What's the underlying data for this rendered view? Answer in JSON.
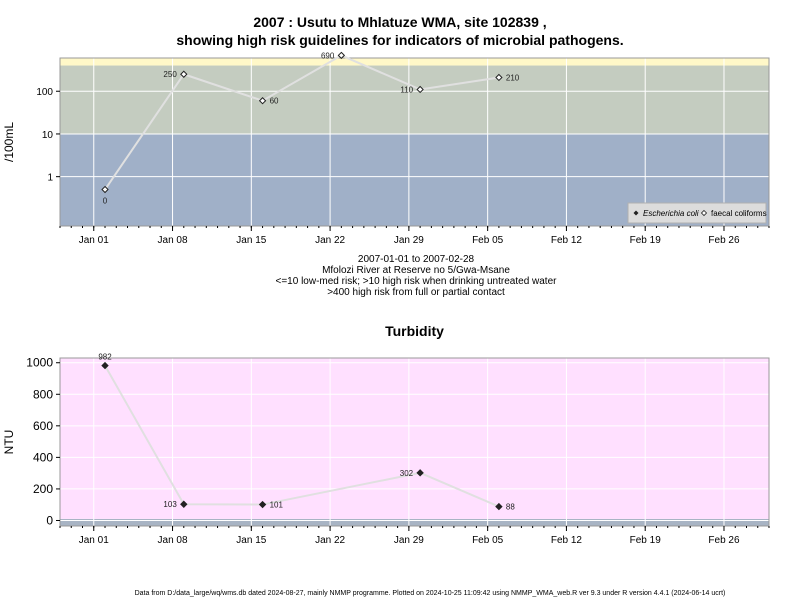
{
  "page": {
    "title_line1": "2007 : Usutu to Mhlatuze WMA, site 102839 ,",
    "title_line2": "showing high risk guidelines for indicators of microbial pathogens.",
    "info_lines": [
      "2007-01-01 to 2007-02-28",
      "Mfolozi River at Reserve no 5/Gwa-Msane",
      "<=10 low-med risk; >10 high risk when drinking untreated water",
      ">400 high risk from full or partial contact"
    ],
    "footer": "Data from D:/data_large/wq/wms.db dated 2024-08-27, mainly NMMP programme. Plotted on 2024-10-25 11:09:42 using NMMP_WMA_web.R ver 9.3 under R version 4.4.1 (2024-06-14 ucrt)"
  },
  "colors": {
    "panel_background": "#a0b0c8",
    "moderate_band": "#c4ccc0",
    "high_risk_band": "#fff8c8",
    "turbidity_background": "#ffe0ff",
    "turbidity_base_band": "#a8b4c4",
    "series_line": "#e0e0e0",
    "grid": "#ffffff"
  },
  "chart_data": [
    {
      "type": "line",
      "title": "",
      "xlabel": "",
      "ylabel": "/100mL",
      "y_scale": "log",
      "ylim": [
        0.07,
        600
      ],
      "xlim": [
        "2006-12-29",
        "2007-03-02"
      ],
      "yticks": [
        1,
        10,
        100
      ],
      "ytick_labels": [
        "1",
        "10",
        "100"
      ],
      "xticks": [
        "2007-01-01",
        "2007-01-08",
        "2007-01-15",
        "2007-01-22",
        "2007-01-29",
        "2007-02-05",
        "2007-02-12",
        "2007-02-19",
        "2007-02-26"
      ],
      "xtick_labels": [
        "Jan 01",
        "Jan 08",
        "Jan 15",
        "Jan 22",
        "Jan 29",
        "Feb 05",
        "Feb 12",
        "Feb 19",
        "Feb 26"
      ],
      "bands": [
        {
          "from": 0.07,
          "to": 10,
          "color": "#a0b0c8"
        },
        {
          "from": 10,
          "to": 400,
          "color": "#c4ccc0"
        },
        {
          "from": 400,
          "to": 600,
          "color": "#fff8c8"
        }
      ],
      "grid": true,
      "legend": {
        "position": "bottom-right",
        "entries": [
          "Escherichia coli",
          "faecal coliforms"
        ]
      },
      "series": [
        {
          "name": "faecal coliforms",
          "marker": "open-diamond",
          "points": [
            {
              "x": "2007-01-02",
              "y": 0.5,
              "label": "0",
              "label_pos": "below"
            },
            {
              "x": "2007-01-09",
              "y": 250,
              "label": "250",
              "label_pos": "left"
            },
            {
              "x": "2007-01-16",
              "y": 60,
              "label": "60",
              "label_pos": "right"
            },
            {
              "x": "2007-01-23",
              "y": 690,
              "label": "690",
              "label_pos": "left"
            },
            {
              "x": "2007-01-30",
              "y": 110,
              "label": "110",
              "label_pos": "left"
            },
            {
              "x": "2007-02-06",
              "y": 210,
              "label": "210",
              "label_pos": "right"
            }
          ]
        }
      ]
    },
    {
      "type": "line",
      "title": "Turbidity",
      "xlabel": "",
      "ylabel": "NTU",
      "ylim": [
        -35,
        1030
      ],
      "xlim": [
        "2006-12-29",
        "2007-03-02"
      ],
      "yticks": [
        0,
        200,
        400,
        600,
        800,
        1000
      ],
      "ytick_labels": [
        "0",
        "200",
        "400",
        "600",
        "800",
        "1000"
      ],
      "xticks": [
        "2007-01-01",
        "2007-01-08",
        "2007-01-15",
        "2007-01-22",
        "2007-01-29",
        "2007-02-05",
        "2007-02-12",
        "2007-02-19",
        "2007-02-26"
      ],
      "xtick_labels": [
        "Jan 01",
        "Jan 08",
        "Jan 15",
        "Jan 22",
        "Jan 29",
        "Feb 05",
        "Feb 12",
        "Feb 19",
        "Feb 26"
      ],
      "bands": [
        {
          "from": -35,
          "to": 10,
          "color": "#a8b4c4"
        },
        {
          "from": 10,
          "to": 1030,
          "color": "#ffe0ff"
        }
      ],
      "grid": true,
      "series": [
        {
          "marker": "filled-diamond",
          "points": [
            {
              "x": "2007-01-02",
              "y": 982,
              "label": "982",
              "label_pos": "above"
            },
            {
              "x": "2007-01-09",
              "y": 103,
              "label": "103",
              "label_pos": "left"
            },
            {
              "x": "2007-01-16",
              "y": 101,
              "label": "101",
              "label_pos": "right"
            },
            {
              "x": "2007-01-30",
              "y": 302,
              "label": "302",
              "label_pos": "left"
            },
            {
              "x": "2007-02-06",
              "y": 88,
              "label": "88",
              "label_pos": "right"
            }
          ]
        }
      ]
    }
  ]
}
